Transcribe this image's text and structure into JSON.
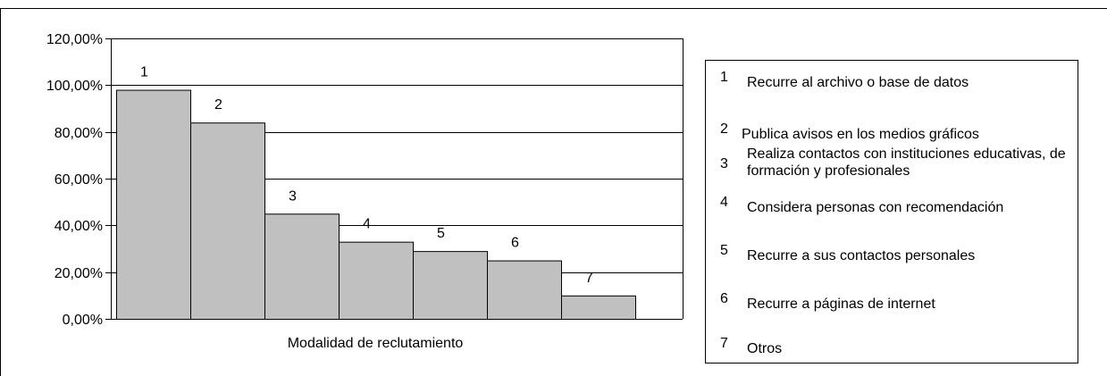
{
  "chart_data": {
    "type": "bar",
    "categories": [
      "1",
      "2",
      "3",
      "4",
      "5",
      "6",
      "7"
    ],
    "values": [
      98,
      84,
      45,
      33,
      29,
      25,
      10
    ],
    "data_labels": [
      "1",
      "2",
      "3",
      "4",
      "5",
      "6",
      "7"
    ],
    "y_ticks": [
      "0,00%",
      "20,00%",
      "40,00%",
      "60,00%",
      "80,00%",
      "100,00%",
      "120,00%"
    ],
    "y_tick_values": [
      0,
      20,
      40,
      60,
      80,
      100,
      120
    ],
    "ylim": [
      0,
      120
    ],
    "xlabel": "Modalidad de reclutamiento",
    "grid": true,
    "legend_position": "right",
    "bar_color": "#c0c0c0",
    "legend": [
      {
        "num": "1",
        "label": "Recurre al archivo o base de datos"
      },
      {
        "num": "2",
        "label": "Publica avisos en los medios gráficos"
      },
      {
        "num": "3",
        "label": "Realiza contactos con instituciones educativas, de formación y profesionales"
      },
      {
        "num": "4",
        "label": "Considera personas con recomendación"
      },
      {
        "num": "5",
        "label": "Recurre a sus contactos personales"
      },
      {
        "num": "6",
        "label": "Recurre a páginas de internet"
      },
      {
        "num": "7",
        "label": "Otros"
      }
    ]
  }
}
